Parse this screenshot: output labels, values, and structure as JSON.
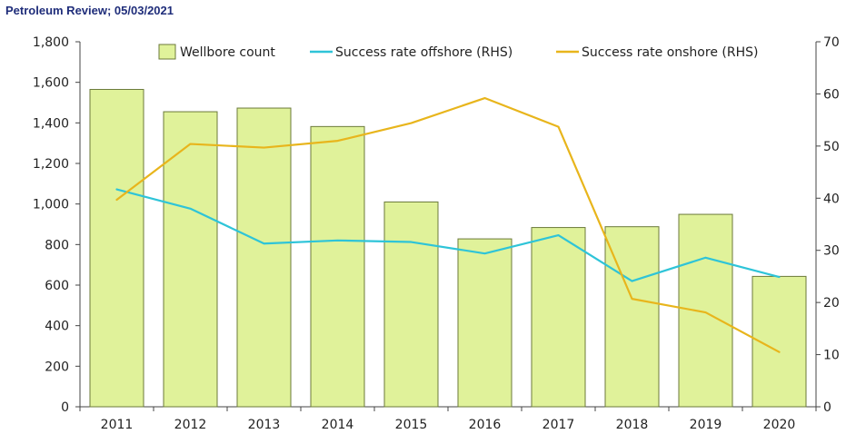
{
  "source_label": "Petroleum Review; 05/03/2021",
  "chart_data": {
    "type": "bar",
    "categories": [
      "2011",
      "2012",
      "2013",
      "2014",
      "2015",
      "2016",
      "2017",
      "2018",
      "2019",
      "2020"
    ],
    "left_ylim": [
      0,
      1800
    ],
    "right_ylim": [
      0,
      70
    ],
    "left_ticks": [
      "0",
      "200",
      "400",
      "600",
      "800",
      "1,000",
      "1,200",
      "1,400",
      "1,600",
      "1,800"
    ],
    "right_ticks": [
      "0",
      "10",
      "20",
      "30",
      "40",
      "50",
      "60",
      "70"
    ],
    "grid": false,
    "legend_position": "top-center",
    "series": [
      {
        "name": "Wellbore count",
        "type": "bar",
        "axis": "left",
        "color": "#e0f29a",
        "stroke": "#6b7a3a",
        "values": [
          1565,
          1455,
          1473,
          1382,
          1010,
          828,
          884,
          888,
          949,
          643
        ]
      },
      {
        "name": "Success rate offshore (RHS)",
        "type": "line",
        "axis": "right",
        "color": "#2ec4d8",
        "values": [
          41.7,
          38.0,
          31.3,
          31.9,
          31.6,
          29.4,
          32.9,
          24.1,
          28.6,
          24.9
        ]
      },
      {
        "name": "Success rate onshore (RHS)",
        "type": "line",
        "axis": "right",
        "color": "#e8b51c",
        "values": [
          39.7,
          50.4,
          49.7,
          51.0,
          54.4,
          59.2,
          53.7,
          20.7,
          18.1,
          10.5
        ]
      }
    ]
  }
}
